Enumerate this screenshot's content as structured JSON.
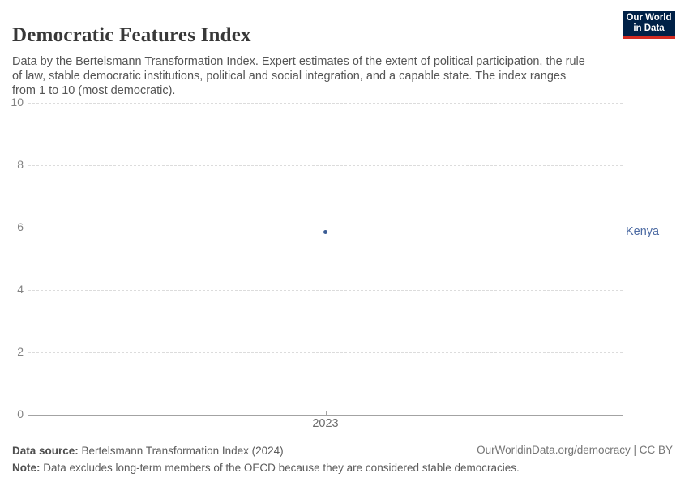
{
  "header": {
    "title": "Democratic Features Index",
    "subtitle": "Data by the Bertelsmann Transformation Index. Expert estimates of the extent of political participation, the rule\nof law, stable democratic institutions, political and social integration, and a capable state. The index ranges\nfrom 1 to 10 (most democratic)."
  },
  "logo": {
    "line1": "Our World",
    "line2": "in Data",
    "background_color": "#002147",
    "bar_color": "#d42b21"
  },
  "chart_data": {
    "type": "scatter",
    "title": "Democratic Features Index",
    "x": [
      "2023"
    ],
    "series": [
      {
        "name": "Kenya",
        "values": [
          5.85
        ]
      }
    ],
    "xlabel": "",
    "ylabel": "",
    "ylim": [
      0,
      10
    ],
    "yticks": [
      0,
      2,
      4,
      6,
      8,
      10
    ],
    "xtick_labels": [
      "2023"
    ],
    "grid": "horizontal dashed",
    "legend_position": "entity label at right of point",
    "point_color": "#3b5c95",
    "entity_label_color": "#4d6ba3",
    "grid_color": "#dcdcdc",
    "axis_color": "#a3a3a3"
  },
  "footer": {
    "source_label": "Data source:",
    "source_text": " Bertelsmann Transformation Index (2024)",
    "right_text": "OurWorldinData.org/democracy | CC BY",
    "note_label": "Note:",
    "note_text": " Data excludes long-term members of the OECD because they are considered stable democracies."
  }
}
